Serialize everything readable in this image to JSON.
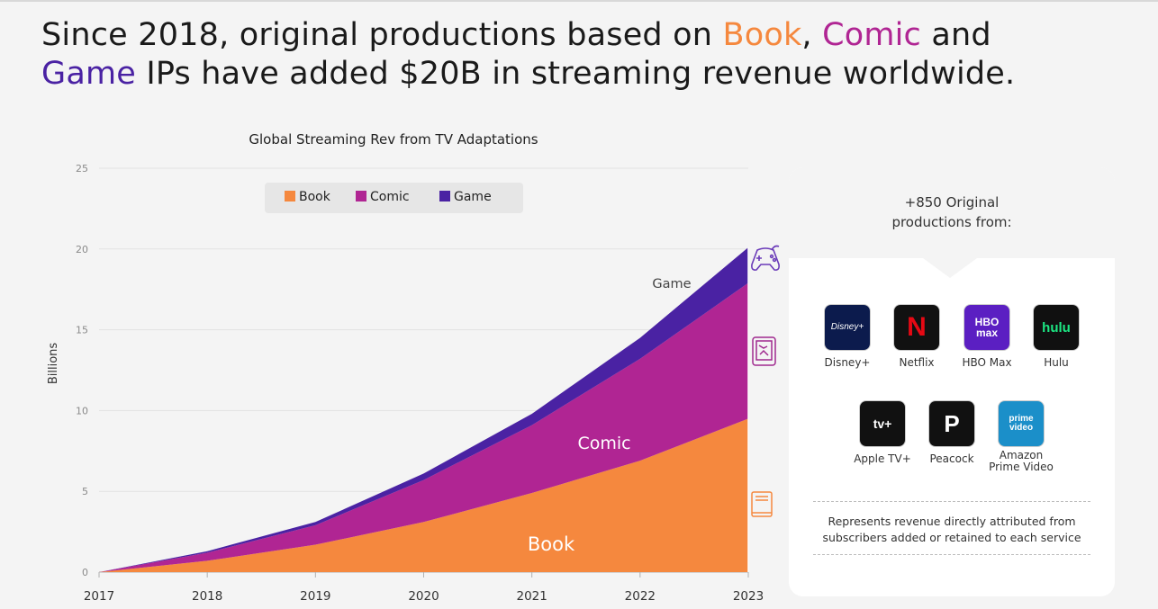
{
  "headline": {
    "t1": "Since 2018, original productions based on ",
    "book": "Book",
    "t2": ", ",
    "comic": "Comic",
    "t3": " and",
    "game": "Game",
    "t4": " IPs have added $20B in streaming revenue worldwide."
  },
  "colors": {
    "book": "#f5883e",
    "comic": "#b02593",
    "game": "#4a22a3"
  },
  "chart_data": {
    "type": "area",
    "stacked": true,
    "title": "Global Streaming Rev from TV Adaptations",
    "ylabel": "Billions",
    "xlabel": "",
    "x": [
      "2017",
      "2018",
      "2019",
      "2020",
      "2021",
      "2022",
      "2023"
    ],
    "ylim": [
      0,
      25
    ],
    "yticks": [
      0,
      5,
      10,
      15,
      20,
      25
    ],
    "grid": true,
    "legend_position": "top-left",
    "series": [
      {
        "name": "Book",
        "color": "#f5883e",
        "values": [
          0,
          0.7,
          1.7,
          3.1,
          4.9,
          6.9,
          9.5
        ],
        "label": "Book",
        "icon": "book-icon"
      },
      {
        "name": "Comic",
        "color": "#b02593",
        "values": [
          0,
          0.5,
          1.2,
          2.6,
          4.2,
          6.3,
          8.4
        ],
        "label": "Comic",
        "icon": "tablet-comic-icon"
      },
      {
        "name": "Game",
        "color": "#4a22a3",
        "values": [
          0,
          0.1,
          0.2,
          0.4,
          0.7,
          1.3,
          2.2
        ],
        "label": "Game",
        "icon": "gamepad-icon"
      }
    ]
  },
  "card": {
    "title_line1": "+850 Original",
    "title_line2": "productions from:",
    "services": [
      {
        "name": "Disney+",
        "logo_text": "Disney+",
        "icon": "disney-plus-logo",
        "color": "#0c1b4d"
      },
      {
        "name": "Netflix",
        "logo_text": "N",
        "icon": "netflix-logo",
        "color": "#111111"
      },
      {
        "name": "HBO Max",
        "logo_text": "HBO max",
        "icon": "hbo-max-logo",
        "color": "#5b1fc2"
      },
      {
        "name": "Hulu",
        "logo_text": "hulu",
        "icon": "hulu-logo",
        "color": "#101010"
      },
      {
        "name": "Apple TV+",
        "logo_text": "tv+",
        "icon": "apple-tv-logo",
        "color": "#111111"
      },
      {
        "name": "Peacock",
        "logo_text": "P",
        "icon": "peacock-logo",
        "color": "#111111"
      },
      {
        "name": "Amazon Prime Video",
        "name_line1": "Amazon",
        "name_line2": "Prime Video",
        "logo_text": "prime video",
        "icon": "prime-video-logo",
        "color": "#1b8fc9"
      }
    ],
    "note_line1": "Represents revenue directly attributed from",
    "note_line2": "subscribers added or retained to each service"
  }
}
